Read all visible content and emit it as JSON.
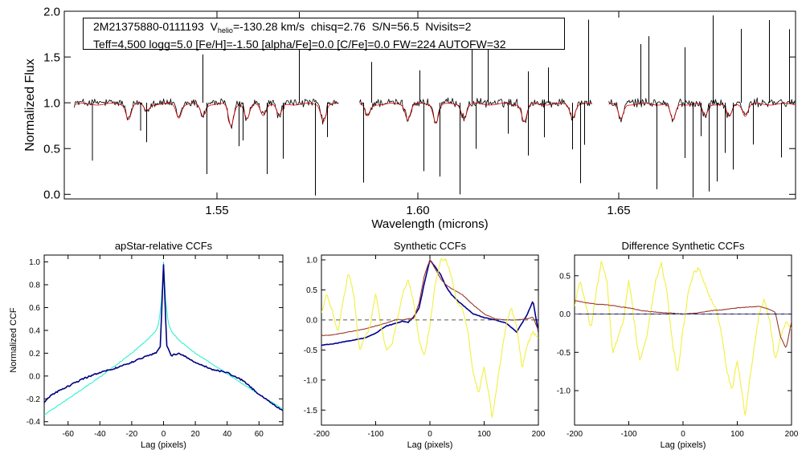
{
  "info": {
    "star_id": "2M21375880-0111193",
    "v_label": "V",
    "v_sub": "helio",
    "v_value": "=-130.28 km/s",
    "chisq": "chisq=2.76",
    "sn": "S/N=56.5",
    "nvisits": "Nvisits=2",
    "line2": "Teff=4,500 logg=5.0 [Fe/H]=-1.50 [alpha/Fe]=0.0 [C/Fe]=0.0 FW=224 AUTOFW=32"
  },
  "colors": {
    "observed": "#000000",
    "model": "#e00000",
    "apstar_blue": "#000080",
    "apstar_cyan": "#30f0d0",
    "synth_blue": "#000090",
    "synth_brown": "#9c3a2a",
    "synth_yellow": "#f0f040",
    "dash": "#555555"
  },
  "chart_data": [
    {
      "type": "line",
      "id": "spectrum",
      "title": "",
      "xlabel": "Wavelength (microns)",
      "ylabel": "Normalized Flux",
      "xlim": [
        1.512,
        1.694
      ],
      "ylim": [
        -0.05,
        2.0
      ],
      "xticks": [
        1.55,
        1.6,
        1.65
      ],
      "xtick_labels": [
        "1.55",
        "1.60",
        "1.65"
      ],
      "yticks": [
        0.0,
        0.5,
        1.0,
        1.5,
        2.0
      ],
      "ytick_labels": [
        "0.0",
        "0.5",
        "1.0",
        "1.5",
        "2.0"
      ],
      "chips": [
        [
          1.5145,
          1.5805
        ],
        [
          1.5855,
          1.6435
        ],
        [
          1.6475,
          1.6945
        ]
      ],
      "series": [
        {
          "name": "observed",
          "baseline": 1.0
        },
        {
          "name": "model",
          "baseline": 0.98
        }
      ],
      "absorption": [
        [
          1.528,
          0.82
        ],
        [
          1.5325,
          0.92
        ],
        [
          1.5405,
          0.84
        ],
        [
          1.5465,
          0.86
        ],
        [
          1.5535,
          0.74
        ],
        [
          1.5575,
          0.82
        ],
        [
          1.5615,
          0.87
        ],
        [
          1.5655,
          0.86
        ],
        [
          1.5765,
          0.8
        ],
        [
          1.5875,
          0.85
        ],
        [
          1.5975,
          0.82
        ],
        [
          1.6045,
          0.78
        ],
        [
          1.6115,
          0.83
        ],
        [
          1.6265,
          0.79
        ],
        [
          1.6385,
          0.84
        ],
        [
          1.6505,
          0.82
        ],
        [
          1.6635,
          0.8
        ],
        [
          1.6715,
          0.86
        ],
        [
          1.6775,
          0.84
        ],
        [
          1.6815,
          0.86
        ]
      ],
      "spikes_down": [
        1.519,
        1.531,
        1.5325,
        1.5475,
        1.5555,
        1.5565,
        1.5625,
        1.5665,
        1.5745,
        1.5775,
        1.5865,
        1.6015,
        1.6055,
        1.6105,
        1.6145,
        1.6225,
        1.6275,
        1.6315,
        1.6385,
        1.6405,
        1.6415,
        1.6595,
        1.6665,
        1.6685,
        1.6705,
        1.6725,
        1.6745,
        1.6765,
        1.6785,
        1.6835,
        1.6905
      ],
      "spikes_up": [
        1.5465,
        1.5705,
        1.5885,
        1.6005,
        1.6135,
        1.6175,
        1.6275,
        1.6325,
        1.6425,
        1.6555,
        1.6575,
        1.6665,
        1.6735,
        1.6805,
        1.6875,
        1.6925
      ]
    },
    {
      "type": "line",
      "id": "apstar_ccf",
      "title": "apStar-relative CCFs",
      "xlabel": "Lag (pixels)",
      "ylabel": "Normalized CCF",
      "xlim": [
        -75,
        75
      ],
      "ylim": [
        -0.43,
        1.06
      ],
      "xticks": [
        -60,
        -40,
        -20,
        0,
        20,
        40,
        60
      ],
      "xtick_labels": [
        "-60",
        "-40",
        "-20",
        "0",
        "20",
        "40",
        "60"
      ],
      "yticks": [
        -0.4,
        -0.2,
        0.0,
        0.2,
        0.4,
        0.6,
        0.8,
        1.0
      ],
      "ytick_labels": [
        "-0.4",
        "-0.2",
        "0.0",
        "0.2",
        "0.4",
        "0.6",
        "0.8",
        "1.0"
      ],
      "series": [
        {
          "name": "cyan",
          "x": [
            -75,
            -60,
            -40,
            -20,
            -10,
            -5,
            -3,
            -1,
            0,
            1,
            3,
            5,
            10,
            20,
            40,
            60,
            75
          ],
          "values": [
            -0.34,
            -0.2,
            -0.01,
            0.2,
            0.32,
            0.39,
            0.46,
            0.7,
            1.0,
            0.7,
            0.46,
            0.39,
            0.31,
            0.2,
            0.02,
            -0.16,
            -0.29
          ]
        },
        {
          "name": "blue",
          "x": [
            -75,
            -70,
            -60,
            -50,
            -40,
            -30,
            -20,
            -10,
            -5,
            -2,
            0,
            2,
            5,
            10,
            20,
            30,
            40,
            50,
            60,
            70,
            75
          ],
          "values": [
            -0.23,
            -0.16,
            -0.09,
            -0.02,
            0.03,
            0.07,
            0.12,
            0.18,
            0.2,
            0.26,
            0.98,
            0.27,
            0.18,
            0.2,
            0.12,
            0.06,
            0.03,
            -0.04,
            -0.16,
            -0.26,
            -0.3
          ]
        }
      ]
    },
    {
      "type": "line",
      "id": "synthetic_ccf",
      "title": "Synthetic CCFs",
      "xlabel": "Lag (pixels)",
      "ylabel": "",
      "xlim": [
        -200,
        200
      ],
      "ylim": [
        -1.75,
        1.08
      ],
      "xticks": [
        -200,
        -100,
        0,
        100,
        200
      ],
      "xtick_labels": [
        "-200",
        "-100",
        "0",
        "100",
        "200"
      ],
      "yticks": [
        -1.5,
        -1.0,
        -0.5,
        0.0,
        0.5,
        1.0
      ],
      "ytick_labels": [
        "-1.5",
        "-1.0",
        "-0.5",
        "0.0",
        "0.5",
        "1.0"
      ],
      "series": [
        {
          "name": "blue",
          "x": [
            -200,
            -180,
            -150,
            -120,
            -100,
            -80,
            -60,
            -50,
            -40,
            -30,
            -20,
            -10,
            0,
            10,
            20,
            30,
            40,
            50,
            60,
            80,
            100,
            120,
            140,
            160,
            180,
            190,
            200
          ],
          "values": [
            -0.42,
            -0.4,
            -0.35,
            -0.3,
            -0.22,
            -0.1,
            -0.05,
            -0.02,
            -0.04,
            0.05,
            0.2,
            0.62,
            1.0,
            0.88,
            0.75,
            0.55,
            0.42,
            0.33,
            0.25,
            0.1,
            0.04,
            0.0,
            -0.05,
            -0.2,
            0.1,
            0.32,
            -0.2
          ]
        },
        {
          "name": "brown",
          "x": [
            -200,
            -180,
            -150,
            -120,
            -100,
            -80,
            -60,
            -50,
            -40,
            -30,
            -20,
            -10,
            0,
            10,
            20,
            30,
            40,
            60,
            80,
            100,
            120,
            140,
            160,
            180,
            190,
            200
          ],
          "values": [
            -0.26,
            -0.25,
            -0.2,
            -0.15,
            -0.1,
            -0.05,
            0.01,
            0.0,
            0.02,
            0.02,
            0.28,
            0.75,
            1.0,
            0.85,
            0.68,
            0.58,
            0.52,
            0.42,
            0.25,
            0.1,
            0.02,
            0.0,
            0.0,
            0.02,
            0.05,
            -0.18
          ]
        },
        {
          "name": "yellow",
          "x": [
            -200,
            -190,
            -180,
            -170,
            -160,
            -150,
            -140,
            -130,
            -120,
            -110,
            -100,
            -95,
            -90,
            -85,
            -80,
            -70,
            -60,
            -50,
            -40,
            -30,
            -20,
            -10,
            0,
            10,
            20,
            30,
            40,
            50,
            60,
            70,
            80,
            90,
            100,
            110,
            115,
            120,
            130,
            140,
            150,
            160,
            170,
            180,
            190,
            200
          ],
          "values": [
            0.1,
            0.45,
            0.15,
            -0.2,
            0.3,
            0.8,
            0.4,
            -0.5,
            -0.3,
            -0.1,
            0.45,
            0.2,
            -0.1,
            -0.3,
            -0.5,
            -0.4,
            0.0,
            0.45,
            0.65,
            0.3,
            -0.35,
            -0.6,
            -0.1,
            0.6,
            1.0,
            1.0,
            0.7,
            0.3,
            0.2,
            -0.2,
            -0.9,
            -1.2,
            -0.8,
            -1.3,
            -1.65,
            -1.3,
            -0.7,
            -0.1,
            0.2,
            -0.1,
            -0.8,
            -0.4,
            -0.2,
            -0.3
          ]
        },
        {
          "name": "zero",
          "x": [
            -200,
            200
          ],
          "values": [
            0.0,
            0.0
          ]
        }
      ]
    },
    {
      "type": "line",
      "id": "difference_ccf",
      "title": "Difference Synthetic CCFs",
      "xlabel": "Lag (pixels)",
      "ylabel": "",
      "xlim": [
        -200,
        200
      ],
      "ylim": [
        -1.45,
        0.77
      ],
      "xticks": [
        -200,
        -100,
        0,
        100,
        200
      ],
      "xtick_labels": [
        "-200",
        "-100",
        "0",
        "100",
        "200"
      ],
      "yticks": [
        -1.0,
        -0.5,
        0.0,
        0.5
      ],
      "ytick_labels": [
        "-1.0",
        "-0.5",
        "0.0",
        "0.5"
      ],
      "series": [
        {
          "name": "yellow",
          "x": [
            -200,
            -190,
            -180,
            -170,
            -160,
            -150,
            -140,
            -130,
            -120,
            -110,
            -100,
            -95,
            -90,
            -85,
            -80,
            -70,
            -60,
            -50,
            -40,
            -30,
            -20,
            -10,
            0,
            10,
            20,
            30,
            40,
            50,
            60,
            70,
            80,
            90,
            100,
            110,
            115,
            120,
            130,
            140,
            150,
            160,
            170,
            180,
            190,
            200
          ],
          "values": [
            0.1,
            0.45,
            0.15,
            -0.2,
            0.3,
            0.7,
            0.4,
            -0.5,
            -0.3,
            -0.1,
            0.45,
            0.2,
            -0.1,
            -0.4,
            -0.6,
            -0.4,
            0.0,
            0.45,
            0.65,
            0.3,
            -0.35,
            -0.8,
            -0.2,
            0.3,
            0.55,
            0.6,
            0.4,
            0.2,
            0.1,
            -0.2,
            -0.7,
            -1.0,
            -0.6,
            -1.1,
            -1.35,
            -1.0,
            -0.5,
            0.0,
            0.2,
            -0.1,
            -0.6,
            -0.3,
            -0.1,
            -0.2
          ]
        },
        {
          "name": "brown",
          "x": [
            -200,
            -180,
            -160,
            -140,
            -120,
            -100,
            -80,
            -60,
            -40,
            -20,
            0,
            20,
            40,
            60,
            80,
            100,
            120,
            140,
            160,
            170,
            180,
            190,
            200
          ],
          "values": [
            0.18,
            0.15,
            0.13,
            0.12,
            0.1,
            0.08,
            0.05,
            0.03,
            0.02,
            0.01,
            0.0,
            0.01,
            0.03,
            0.05,
            0.06,
            0.08,
            0.09,
            0.1,
            0.06,
            0.02,
            -0.3,
            -0.45,
            -0.1
          ]
        },
        {
          "name": "blue",
          "x": [
            -200,
            200
          ],
          "values": [
            0.0,
            0.0
          ]
        },
        {
          "name": "zero",
          "x": [
            -200,
            200
          ],
          "values": [
            0.0,
            0.0
          ]
        }
      ]
    }
  ]
}
